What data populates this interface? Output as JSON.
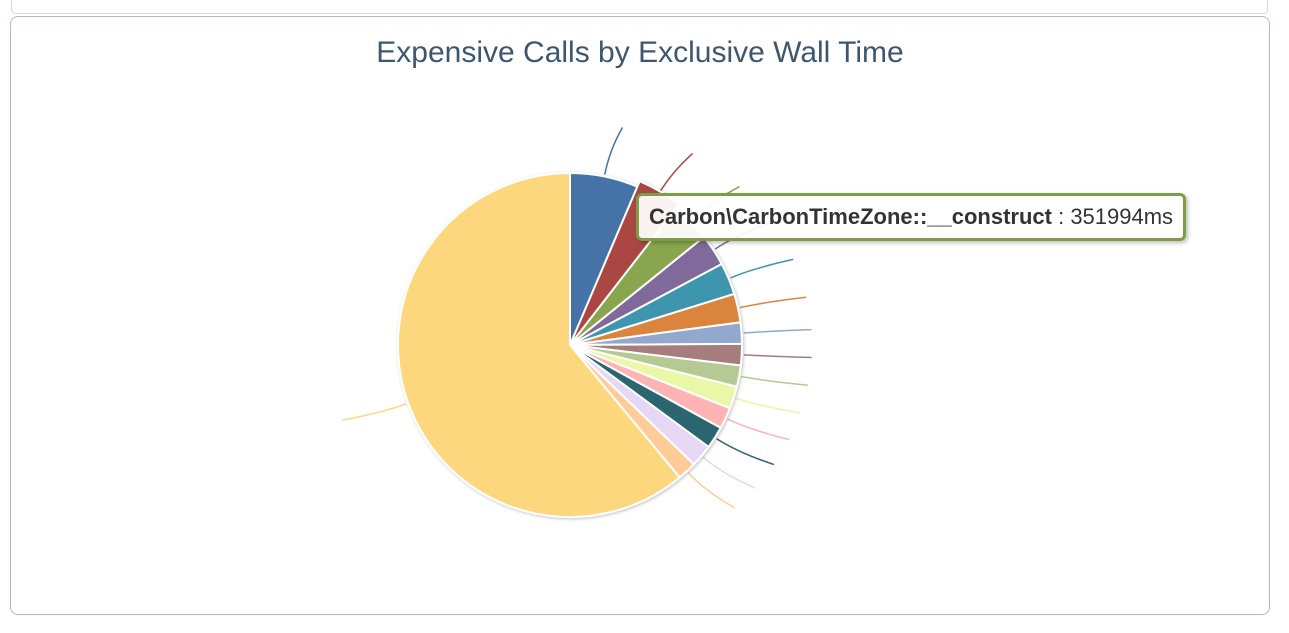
{
  "chart_data": {
    "type": "pie",
    "title": "Expensive Calls by Exclusive Wall Time",
    "slices": [
      {
        "color": "#4572a7",
        "share": 0.064
      },
      {
        "color": "#aa4643",
        "share": 0.041
      },
      {
        "color": "#89a54e",
        "share": 0.037
      },
      {
        "color": "#80699b",
        "share": 0.03
      },
      {
        "color": "#3d96ae",
        "share": 0.03
      },
      {
        "color": "#db843d",
        "share": 0.027
      },
      {
        "color": "#92a8cd",
        "share": 0.02
      },
      {
        "color": "#a47d7c",
        "share": 0.02
      },
      {
        "color": "#b5ca92",
        "share": 0.02
      },
      {
        "color": "#e9f7a6",
        "share": 0.021
      },
      {
        "color": "#ffb3b3",
        "share": 0.02
      },
      {
        "color": "#2a6570",
        "share": 0.021
      },
      {
        "color": "#e6d7f5",
        "share": 0.021
      },
      {
        "color": "#ffcc99",
        "share": 0.018
      },
      {
        "color": "#fdd77e",
        "share": 0.61
      }
    ],
    "highlight_index": 1
  },
  "tooltip": {
    "name": "Carbon\\CarbonTimeZone::__construct",
    "value": " : 351994ms",
    "border_color": "#7f9d47"
  }
}
